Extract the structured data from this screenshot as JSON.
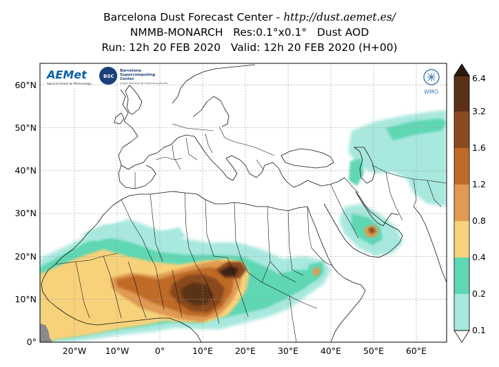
{
  "title": {
    "line1_prefix": "Barcelona Dust Forecast Center - ",
    "line1_url": "http://dust.aemet.es/",
    "line2": "NMMB-MONARCH   Res:0.1°x0.1°   Dust AOD",
    "line3": "Run: 12h 20 FEB 2020   Valid: 12h 20 FEB 2020 (H+00)"
  },
  "map": {
    "lon_range": [
      -28,
      68
    ],
    "lat_range": [
      0,
      65
    ],
    "lon_ticks": [
      {
        "v": -20,
        "label": "20°W"
      },
      {
        "v": -10,
        "label": "10°W"
      },
      {
        "v": 0,
        "label": "0°"
      },
      {
        "v": 10,
        "label": "10°E"
      },
      {
        "v": 20,
        "label": "20°E"
      },
      {
        "v": 30,
        "label": "30°E"
      },
      {
        "v": 40,
        "label": "40°E"
      },
      {
        "v": 50,
        "label": "50°E"
      },
      {
        "v": 60,
        "label": "60°E"
      }
    ],
    "lat_ticks": [
      {
        "v": 0,
        "label": "0°"
      },
      {
        "v": 10,
        "label": "10°N"
      },
      {
        "v": 20,
        "label": "20°N"
      },
      {
        "v": 30,
        "label": "30°N"
      },
      {
        "v": 40,
        "label": "40°N"
      },
      {
        "v": 50,
        "label": "50°N"
      },
      {
        "v": 60,
        "label": "60°N"
      }
    ],
    "grid": true
  },
  "colorbar": {
    "levels": [
      "0.1",
      "0.2",
      "0.4",
      "0.8",
      "1.2",
      "1.6",
      "3.2",
      "6.4"
    ],
    "colors": [
      "#ffffff",
      "#a8e8de",
      "#5fd7b3",
      "#f7d27a",
      "#e09a52",
      "#bf6a28",
      "#8a4a1f",
      "#5a3117",
      "#2e1a0c"
    ]
  },
  "logos": {
    "aemet": "AEMet",
    "aemet_sub": "Agencia Estatal de Meteorología",
    "bsc_badge": "BSC",
    "bsc_name_1": "Barcelona",
    "bsc_name_2": "Supercomputing",
    "bsc_name_3": "Center",
    "bsc_sub": "Centro Nacional de Supercomputación",
    "wmo": "WMO"
  }
}
